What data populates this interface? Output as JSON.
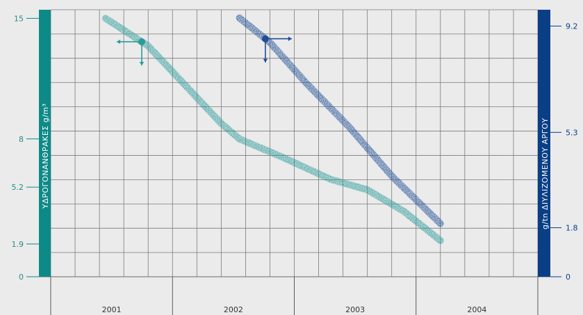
{
  "chart_data": {
    "type": "line",
    "x_axis": {
      "categories": [
        "2001",
        "2002",
        "2003",
        "2004"
      ],
      "range": [
        2001,
        2005
      ]
    },
    "y_left": {
      "label": "ΥΔΡΟΓΟΝΑΝΘΡΑΚΕΣ g/m³",
      "ticks": [
        0,
        1.9,
        5.2,
        8,
        15
      ],
      "range": [
        0,
        15.5
      ]
    },
    "y_right": {
      "label": "g/tn ΔΙΥΛΙΖΟΜΕΝΟΥ ΑΡΓΟΥ",
      "ticks": [
        0,
        1.8,
        5.3,
        9.2
      ],
      "range": [
        0,
        9.8
      ]
    },
    "series": [
      {
        "axis": "left",
        "color": "#2a9c9a",
        "x": [
          2001.45,
          2001.8,
          2002.2,
          2002.4,
          2002.55,
          2002.9,
          2003.3,
          2003.6,
          2003.9,
          2004.2
        ],
        "y": [
          15,
          13.4,
          10.4,
          8.9,
          8.0,
          6.95,
          5.65,
          5.05,
          3.8,
          2.1
        ]
      },
      {
        "axis": "right",
        "color": "#1f4e96",
        "x": [
          2002.55,
          2002.8,
          2003.1,
          2003.45,
          2003.8,
          2004.2
        ],
        "y": [
          9.5,
          8.6,
          7.1,
          5.5,
          3.7,
          1.95
        ]
      }
    ],
    "grid": true,
    "colors": {
      "left_axis_bar": "#0c8a88",
      "right_axis_bar": "#0a3f86",
      "left_tick_text": "#2a8a88",
      "right_tick_text": "#0a3f86",
      "background": "#ebebeb",
      "grid": "#7a7a7a"
    }
  }
}
